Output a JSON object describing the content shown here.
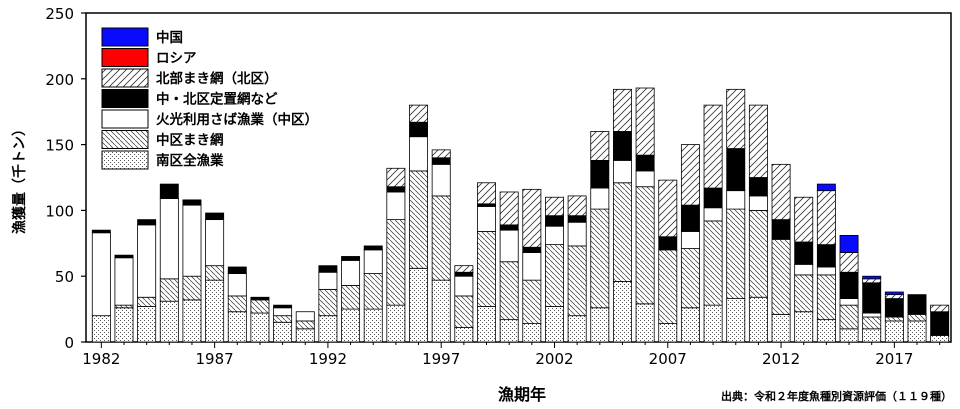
{
  "chart_data": {
    "type": "bar",
    "stacked": true,
    "title": "",
    "xlabel": "漁期年",
    "ylabel": "漁獲量（千トン）",
    "ylim": [
      0,
      250
    ],
    "yticks": [
      0,
      50,
      100,
      150,
      200,
      250
    ],
    "xticks": [
      "1982",
      "1987",
      "1992",
      "1997",
      "2002",
      "2007",
      "2012",
      "2017"
    ],
    "categories": [
      "1982",
      "1983",
      "1984",
      "1985",
      "1986",
      "1987",
      "1988",
      "1989",
      "1990",
      "1991",
      "1992",
      "1993",
      "1994",
      "1995",
      "1996",
      "1997",
      "1998",
      "1999",
      "2000",
      "2001",
      "2002",
      "2003",
      "2004",
      "2005",
      "2006",
      "2007",
      "2008",
      "2009",
      "2010",
      "2011",
      "2012",
      "2013",
      "2014",
      "2015",
      "2016",
      "2017",
      "2018",
      "2019"
    ],
    "legend_position": "top-left",
    "grid": false,
    "series": [
      {
        "name": "南区全漁業",
        "pattern": "dots",
        "values": [
          20,
          26,
          27,
          31,
          32,
          47,
          23,
          22,
          15,
          10,
          20,
          25,
          25,
          28,
          56,
          47,
          11,
          27,
          17,
          14,
          27,
          20,
          26,
          46,
          29,
          14,
          26,
          28,
          33,
          34,
          21,
          23,
          17,
          10,
          10,
          16,
          16,
          5
        ]
      },
      {
        "name": "中区まき網",
        "pattern": "backslash",
        "values": [
          0,
          2,
          7,
          17,
          18,
          11,
          12,
          10,
          5,
          6,
          20,
          18,
          27,
          65,
          74,
          64,
          24,
          57,
          44,
          33,
          47,
          53,
          75,
          75,
          89,
          56,
          45,
          64,
          68,
          66,
          57,
          28,
          34,
          18,
          9,
          3,
          5,
          0
        ]
      },
      {
        "name": "火光利用さば漁業（中区）",
        "pattern": "white",
        "values": [
          63,
          36,
          55,
          61,
          54,
          35,
          17,
          0,
          6,
          7,
          13,
          19,
          18,
          21,
          26,
          24,
          15,
          19,
          24,
          21,
          14,
          18,
          16,
          17,
          12,
          0,
          13,
          10,
          14,
          11,
          0,
          8,
          6,
          5,
          3,
          0,
          0,
          0
        ]
      },
      {
        "name": "中・北区定置網など",
        "pattern": "black",
        "values": [
          2,
          2,
          4,
          11,
          4,
          5,
          5,
          2,
          2,
          0,
          5,
          3,
          3,
          4,
          11,
          5,
          3,
          2,
          4,
          4,
          8,
          5,
          21,
          22,
          12,
          10,
          20,
          15,
          32,
          14,
          15,
          17,
          17,
          20,
          23,
          14,
          15,
          18
        ]
      },
      {
        "name": "北部まき網（北区）",
        "pattern": "slash",
        "values": [
          0,
          0,
          0,
          0,
          0,
          0,
          0,
          0,
          0,
          0,
          0,
          0,
          0,
          14,
          13,
          6,
          5,
          16,
          25,
          44,
          14,
          15,
          22,
          32,
          51,
          43,
          46,
          63,
          45,
          55,
          42,
          34,
          41,
          15,
          3,
          3,
          0,
          5
        ]
      },
      {
        "name": "ロシア",
        "pattern": "red",
        "values": [
          0,
          0,
          0,
          0,
          0,
          0,
          0,
          0,
          0,
          0,
          0,
          0,
          0,
          0,
          0,
          0,
          0,
          0,
          0,
          0,
          0,
          0,
          0,
          0,
          0,
          0,
          0,
          0,
          0,
          0,
          0,
          0,
          0,
          0,
          0,
          0,
          0,
          0
        ]
      },
      {
        "name": "中国",
        "pattern": "blue",
        "values": [
          0,
          0,
          0,
          0,
          0,
          0,
          0,
          0,
          0,
          0,
          0,
          0,
          0,
          0,
          0,
          0,
          0,
          0,
          0,
          0,
          0,
          0,
          0,
          0,
          0,
          0,
          0,
          0,
          0,
          0,
          0,
          0,
          5,
          13,
          2,
          2,
          0,
          0
        ]
      }
    ],
    "legend_order": [
      "中国",
      "ロシア",
      "北部まき網（北区）",
      "中・北区定置網など",
      "火光利用さば漁業（中区）",
      "中区まき網",
      "南区全漁業"
    ]
  },
  "footer": {
    "source": "出典：令和２年度魚種別資源評価（１１９種）"
  },
  "colors": {
    "axis": "#000000",
    "china": "#0a0aff",
    "russia": "#ff0000",
    "black": "#000000",
    "white": "#ffffff",
    "hatch": "#444444"
  }
}
